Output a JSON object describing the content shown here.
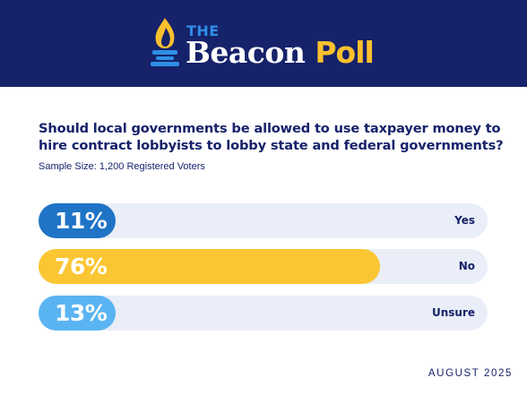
{
  "header": {
    "logo_the": "THE",
    "logo_beacon": "Beacon",
    "logo_poll": "Poll",
    "icon": "torch-icon",
    "background": "#16226a"
  },
  "question": "Should local governments be allowed to use taxpayer money to hire contract lobbyists to lobby state and federal governments?",
  "sample_size": "Sample Size: 1,200 Registered Voters",
  "footer_date": "AUGUST 2025",
  "chart_data": {
    "type": "bar",
    "orientation": "horizontal",
    "categories": [
      "Yes",
      "No",
      "Unsure"
    ],
    "values": [
      11,
      76,
      13
    ],
    "value_labels": [
      "11%",
      "76%",
      "13%"
    ],
    "colors": [
      "#1f74c6",
      "#fbc633",
      "#5ab4f2"
    ],
    "xlim": [
      0,
      100
    ],
    "track_color": "#e9eef8"
  }
}
